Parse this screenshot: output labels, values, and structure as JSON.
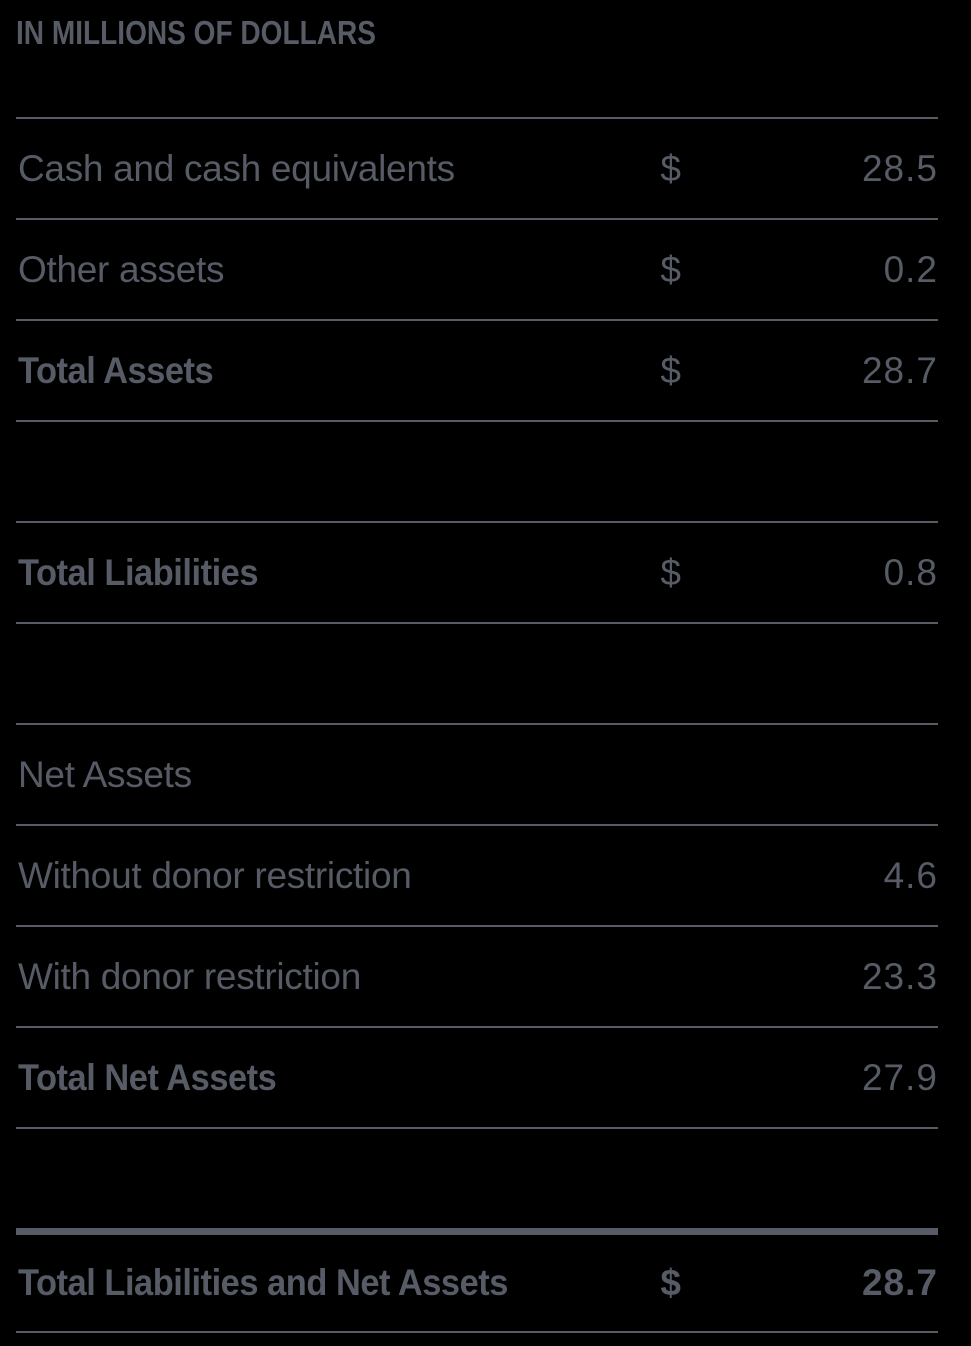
{
  "page": {
    "background_color": "#000000",
    "text_color": "#565b65",
    "rule_color": "#565b65"
  },
  "header": {
    "title": "IN MILLIONS OF DOLLARS"
  },
  "table": {
    "rows": [
      {
        "kind": "data",
        "label": "Cash and cash equivalents",
        "currency": "$",
        "value": "28.5",
        "bold_label": false,
        "bold_value": false,
        "grand": false
      },
      {
        "kind": "data",
        "label": "Other assets",
        "currency": "$",
        "value": "0.2",
        "bold_label": false,
        "bold_value": false,
        "grand": false
      },
      {
        "kind": "data",
        "label": "Total Assets",
        "currency": "$",
        "value": "28.7",
        "bold_label": true,
        "bold_value": false,
        "grand": false
      },
      {
        "kind": "spacer",
        "label": "",
        "currency": "",
        "value": ""
      },
      {
        "kind": "data",
        "label": "Total Liabilities",
        "currency": "$",
        "value": "0.8",
        "bold_label": true,
        "bold_value": false,
        "grand": false
      },
      {
        "kind": "spacer",
        "label": "",
        "currency": "",
        "value": ""
      },
      {
        "kind": "data",
        "label": "Net Assets",
        "currency": "",
        "value": "",
        "bold_label": false,
        "bold_value": false,
        "grand": false
      },
      {
        "kind": "data",
        "label": "Without donor restriction",
        "currency": "",
        "value": "4.6",
        "bold_label": false,
        "bold_value": false,
        "grand": false
      },
      {
        "kind": "data",
        "label": "With donor restriction",
        "currency": "",
        "value": "23.3",
        "bold_label": false,
        "bold_value": false,
        "grand": false
      },
      {
        "kind": "data",
        "label": "Total Net Assets",
        "currency": "",
        "value": "27.9",
        "bold_label": true,
        "bold_value": false,
        "grand": false
      },
      {
        "kind": "spacer-open",
        "label": "",
        "currency": "",
        "value": ""
      },
      {
        "kind": "data",
        "label": "Total Liabilities and Net Assets",
        "currency": "$",
        "value": "28.7",
        "bold_label": true,
        "bold_value": true,
        "grand": true
      }
    ]
  }
}
